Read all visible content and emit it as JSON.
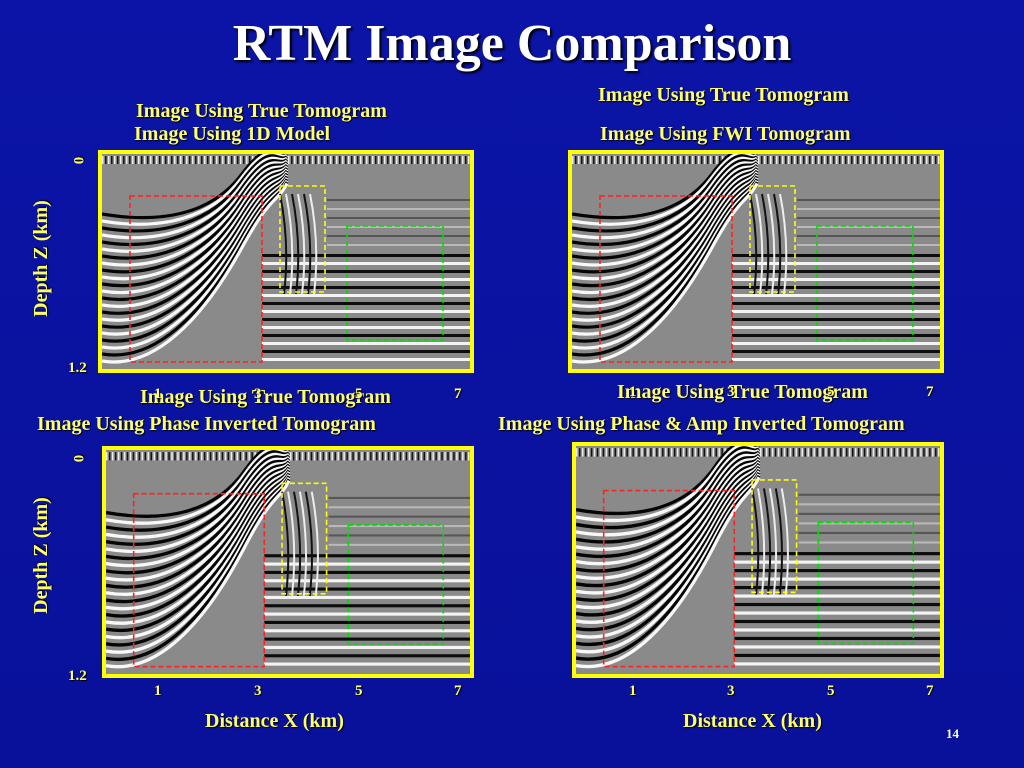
{
  "title": "RTM Image Comparison",
  "panels": [
    {
      "caption_top": "Image Using True Tomogram",
      "caption_main": "Image Using 1D Model"
    },
    {
      "caption_top": "Image Using True Tomogram",
      "caption_main": "Image Using FWI Tomogram"
    },
    {
      "caption_top": "Image Using True Tomogram",
      "caption_main": "Image Using  Phase Inverted Tomogram"
    },
    {
      "caption_top": "Image Using True Tomogram",
      "caption_main": "Image Using Phase & Amp Inverted Tomogram"
    }
  ],
  "axes": {
    "ylabel": "Depth Z (km)",
    "xlabel": "Distance X (km)",
    "y_ticks": [
      "0",
      "1.2"
    ],
    "x_ticks": [
      "1",
      "3",
      "5",
      "7"
    ]
  },
  "box_colors": {
    "left": "#ff2020",
    "middle": "#ffff00",
    "right": "#00dd00"
  },
  "page_number": "14"
}
